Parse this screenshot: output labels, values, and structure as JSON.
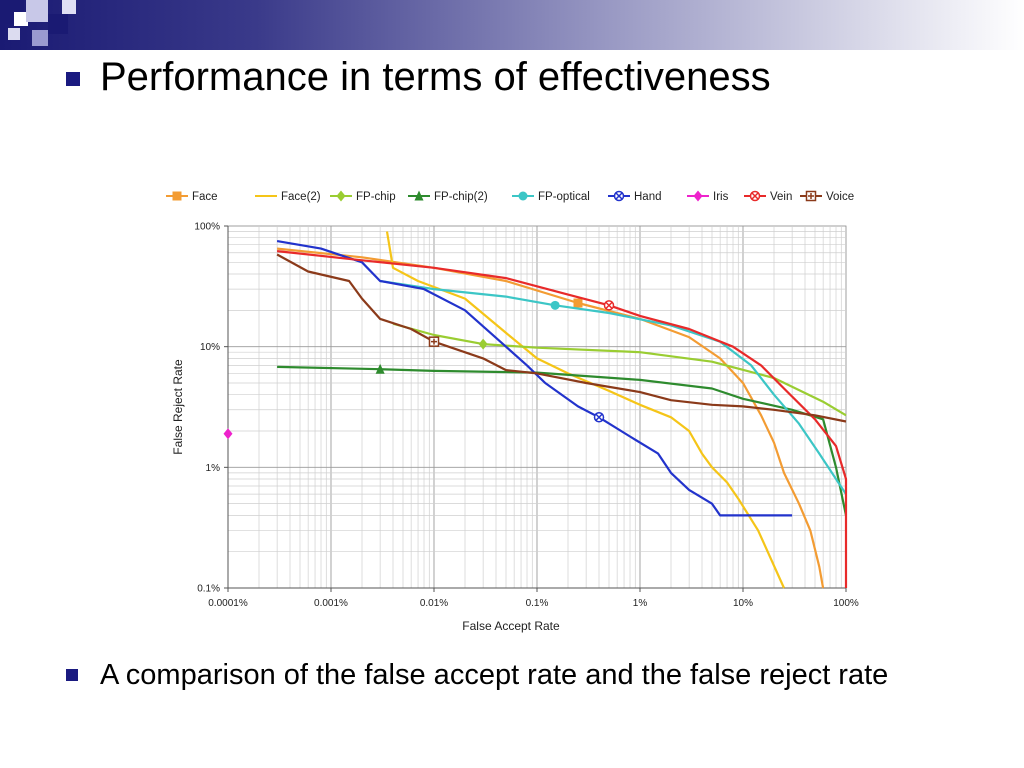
{
  "slide": {
    "title": "Performance in terms of effectiveness",
    "bullet_text": "A comparison of the false accept rate and the false reject rate"
  },
  "colors": {
    "banner_dark": "#1a1a73",
    "bullet": "#1a1a80"
  },
  "chart_data": {
    "type": "line",
    "title": "",
    "xlabel": "False Accept Rate",
    "ylabel": "False Reject Rate",
    "x_scale": "log",
    "y_scale": "log",
    "xlim": [
      0.0001,
      100
    ],
    "ylim": [
      0.1,
      100
    ],
    "x_ticks": [
      {
        "value": 0.0001,
        "label": "0.0001%"
      },
      {
        "value": 0.001,
        "label": "0.001%"
      },
      {
        "value": 0.01,
        "label": "0.01%"
      },
      {
        "value": 0.1,
        "label": "0.1%"
      },
      {
        "value": 1,
        "label": "1%"
      },
      {
        "value": 10,
        "label": "10%"
      },
      {
        "value": 100,
        "label": "100%"
      }
    ],
    "y_ticks": [
      {
        "value": 0.1,
        "label": "0.1%"
      },
      {
        "value": 1,
        "label": "1%"
      },
      {
        "value": 10,
        "label": "10%"
      },
      {
        "value": 100,
        "label": "100%"
      }
    ],
    "grid": true,
    "legend_position": "top",
    "series": [
      {
        "name": "Face",
        "color": "#f39c33",
        "marker": "square",
        "marker_at": [
          0.25,
          23
        ],
        "points": [
          [
            0.0003,
            65
          ],
          [
            0.002,
            55
          ],
          [
            0.01,
            45
          ],
          [
            0.05,
            35
          ],
          [
            0.25,
            23
          ],
          [
            1,
            17
          ],
          [
            3,
            12
          ],
          [
            6,
            8
          ],
          [
            10,
            5
          ],
          [
            15,
            2.7
          ],
          [
            20,
            1.6
          ],
          [
            25,
            0.9
          ],
          [
            35,
            0.5
          ],
          [
            45,
            0.3
          ],
          [
            55,
            0.15
          ],
          [
            60,
            0.1
          ]
        ]
      },
      {
        "name": "Face(2)",
        "color": "#f5c518",
        "marker": "none",
        "points": [
          [
            0.0035,
            90
          ],
          [
            0.004,
            45
          ],
          [
            0.007,
            35
          ],
          [
            0.02,
            25
          ],
          [
            0.05,
            13
          ],
          [
            0.1,
            8
          ],
          [
            0.2,
            6
          ],
          [
            0.5,
            4.3
          ],
          [
            1,
            3.3
          ],
          [
            2,
            2.6
          ],
          [
            3,
            2
          ],
          [
            4,
            1.3
          ],
          [
            5,
            1
          ],
          [
            7,
            0.75
          ],
          [
            9,
            0.55
          ],
          [
            14,
            0.3
          ],
          [
            25,
            0.1
          ]
        ]
      },
      {
        "name": "FP-chip",
        "color": "#9acd32",
        "marker": "diamond",
        "marker_at": [
          0.03,
          10.5
        ],
        "points": [
          [
            0.004,
            15.5
          ],
          [
            0.01,
            12.5
          ],
          [
            0.03,
            10.5
          ],
          [
            0.1,
            9.8
          ],
          [
            1,
            9
          ],
          [
            5,
            7.5
          ],
          [
            20,
            5.5
          ],
          [
            60,
            3.5
          ],
          [
            100,
            2.7
          ]
        ]
      },
      {
        "name": "FP-chip(2)",
        "color": "#2e8b2e",
        "marker": "triangle",
        "marker_at": [
          0.003,
          6.5
        ],
        "points": [
          [
            0.0003,
            6.8
          ],
          [
            0.003,
            6.5
          ],
          [
            0.01,
            6.3
          ],
          [
            0.1,
            6.1
          ],
          [
            1,
            5.3
          ],
          [
            5,
            4.5
          ],
          [
            10,
            3.7
          ],
          [
            30,
            3
          ],
          [
            60,
            2.5
          ],
          [
            80,
            1
          ],
          [
            100,
            0.4
          ]
        ]
      },
      {
        "name": "FP-optical",
        "color": "#3cc6c6",
        "marker": "circle",
        "marker_at": [
          0.15,
          22
        ],
        "points": [
          [
            0.003,
            35
          ],
          [
            0.01,
            30
          ],
          [
            0.05,
            26
          ],
          [
            0.15,
            22
          ],
          [
            0.5,
            19
          ],
          [
            2,
            15
          ],
          [
            6,
            11
          ],
          [
            12,
            7
          ],
          [
            20,
            4
          ],
          [
            35,
            2.3
          ],
          [
            55,
            1.3
          ],
          [
            80,
            0.8
          ],
          [
            100,
            0.6
          ]
        ]
      },
      {
        "name": "Hand",
        "color": "#2233cc",
        "marker": "x",
        "marker_at": [
          0.4,
          2.6
        ],
        "points": [
          [
            0.0003,
            75
          ],
          [
            0.0008,
            65
          ],
          [
            0.002,
            50
          ],
          [
            0.003,
            35
          ],
          [
            0.008,
            30
          ],
          [
            0.02,
            20
          ],
          [
            0.05,
            10
          ],
          [
            0.08,
            7
          ],
          [
            0.12,
            5
          ],
          [
            0.25,
            3.2
          ],
          [
            0.4,
            2.6
          ],
          [
            0.8,
            1.8
          ],
          [
            1.5,
            1.3
          ],
          [
            2,
            0.9
          ],
          [
            3,
            0.65
          ],
          [
            5,
            0.5
          ],
          [
            6,
            0.4
          ],
          [
            30,
            0.4
          ]
        ]
      },
      {
        "name": "Iris",
        "color": "#ee22cc",
        "marker": "diamond",
        "marker_at": [
          0.0001,
          1.9
        ],
        "points": [
          [
            0.0001,
            1.9
          ]
        ]
      },
      {
        "name": "Vein",
        "color": "#e82a2a",
        "marker": "x-square",
        "marker_at": [
          0.5,
          22
        ],
        "points": [
          [
            0.0003,
            62
          ],
          [
            0.002,
            52
          ],
          [
            0.01,
            45
          ],
          [
            0.05,
            37
          ],
          [
            0.2,
            27
          ],
          [
            0.5,
            22
          ],
          [
            1,
            18
          ],
          [
            3,
            14
          ],
          [
            8,
            10
          ],
          [
            15,
            7
          ],
          [
            25,
            4.5
          ],
          [
            50,
            2.5
          ],
          [
            80,
            1.5
          ],
          [
            100,
            0.8
          ],
          [
            100,
            0.1
          ]
        ]
      },
      {
        "name": "Voice",
        "color": "#8b3a1a",
        "marker": "plus-square",
        "marker_at": [
          0.01,
          11
        ],
        "points": [
          [
            0.0003,
            58
          ],
          [
            0.0006,
            42
          ],
          [
            0.0015,
            35
          ],
          [
            0.002,
            25
          ],
          [
            0.003,
            17
          ],
          [
            0.006,
            14
          ],
          [
            0.01,
            11
          ],
          [
            0.03,
            8
          ],
          [
            0.05,
            6.4
          ],
          [
            0.1,
            6
          ],
          [
            0.3,
            5
          ],
          [
            1,
            4.2
          ],
          [
            2,
            3.6
          ],
          [
            5,
            3.3
          ],
          [
            10,
            3.2
          ],
          [
            20,
            3
          ],
          [
            50,
            2.7
          ],
          [
            100,
            2.4
          ]
        ]
      }
    ]
  }
}
